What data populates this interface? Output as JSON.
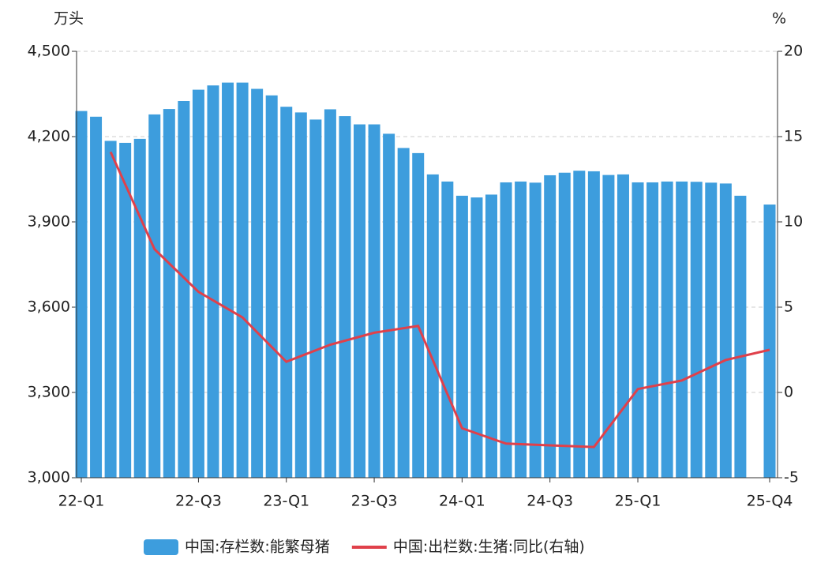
{
  "chart_data": {
    "type": "bar_line",
    "y_label": "万头",
    "y2_label": "%",
    "categories": [
      "22-Q1",
      null,
      null,
      null,
      null,
      null,
      null,
      null,
      "22-Q3",
      null,
      null,
      null,
      null,
      null,
      "23-Q1",
      null,
      null,
      null,
      null,
      null,
      "23-Q3",
      null,
      null,
      null,
      null,
      null,
      "24-Q1",
      null,
      null,
      null,
      null,
      null,
      "24-Q3",
      null,
      null,
      null,
      null,
      null,
      "25-Q1",
      null,
      null,
      null,
      null,
      null,
      null,
      null,
      null,
      "25-Q4"
    ],
    "series": [
      {
        "name": "中国:存栏数:能繁母猪",
        "color": "#3d9ddd",
        "type": "bar",
        "values": [
          4290,
          4270,
          4185,
          4178,
          4192,
          4278,
          4297,
          4325,
          4365,
          4380,
          4390,
          4390,
          4368,
          4345,
          4305,
          4285,
          4260,
          4296,
          4272,
          4243,
          4243,
          4210,
          4160,
          4142,
          4067,
          4042,
          3992,
          3986,
          3996,
          4039,
          4042,
          4038,
          4064,
          4073,
          4080,
          4078,
          4065,
          4067,
          4039,
          4039,
          4042,
          4042,
          4041,
          4038,
          4035,
          3992,
          null,
          3961
        ]
      },
      {
        "name": "中国:出栏数:生猪:同比(右轴)",
        "color": "#e0404a",
        "type": "line",
        "axis": "y2",
        "values": [
          null,
          null,
          14.1,
          null,
          null,
          8.4,
          null,
          null,
          5.9,
          null,
          null,
          4.4,
          null,
          null,
          1.8,
          null,
          null,
          2.8,
          null,
          null,
          3.5,
          null,
          null,
          3.9,
          null,
          null,
          -2.1,
          null,
          null,
          -3.0,
          null,
          null,
          -3.1,
          null,
          null,
          -3.2,
          null,
          null,
          0.2,
          null,
          null,
          0.7,
          null,
          null,
          1.9,
          null,
          null,
          2.5
        ]
      }
    ],
    "connect_nulls": true,
    "ylim": [
      3000,
      4500
    ],
    "yticks": [
      {
        "value": 3000,
        "label": "3,000"
      },
      {
        "value": 3300,
        "label": "3,300"
      },
      {
        "value": 3600,
        "label": "3,600"
      },
      {
        "value": 3900,
        "label": "3,900"
      },
      {
        "value": 4200,
        "label": "4,200"
      },
      {
        "value": 4500,
        "label": "4,500"
      }
    ],
    "y2lim": [
      -5,
      20
    ],
    "y2ticks": [
      -5,
      0,
      5,
      10,
      15,
      20
    ],
    "grid": true,
    "legend": "bottom"
  }
}
